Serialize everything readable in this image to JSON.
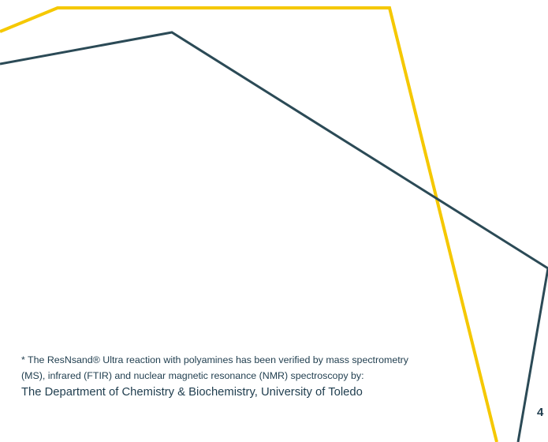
{
  "footnote": {
    "line1": "* The ResNsand® Ultra reaction with polyamines has been verified by mass spectrometry",
    "line2": "(MS), infrared (FTIR) and nuclear magnetic resonance (NMR) spectroscopy by:",
    "credit": "The Department of Chemistry & Biochemistry, University of Toledo"
  },
  "page_number": "4",
  "colors": {
    "background": "#ffffff",
    "yellow_line": "#f5c800",
    "slate_line": "#2b4a56",
    "text": "#1f3d4e"
  }
}
